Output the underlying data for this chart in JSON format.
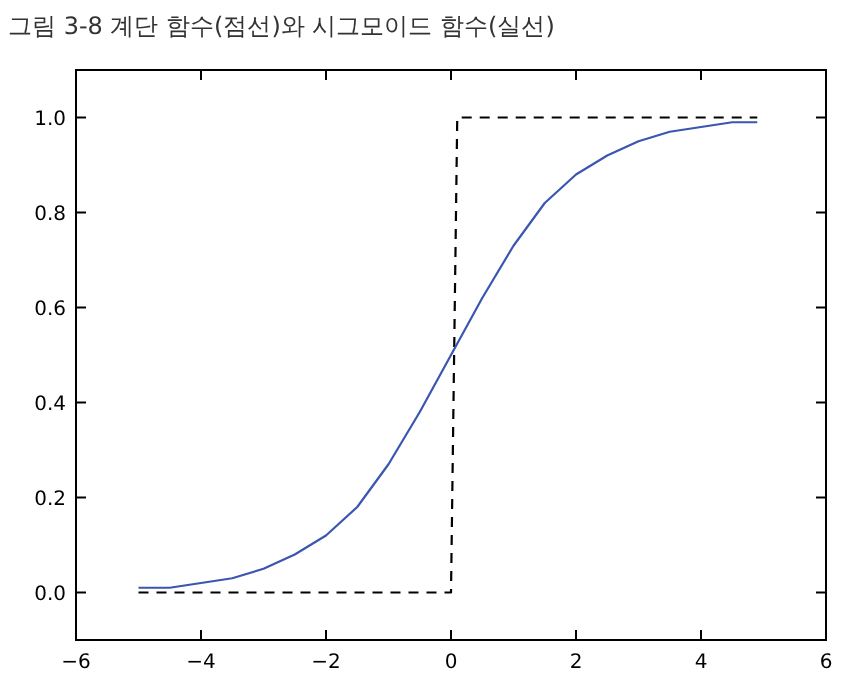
{
  "chart_data": {
    "type": "line",
    "title": "그림 3-8  계단 함수(점선)와 시그모이드 함수(실선)",
    "xlim": [
      -6,
      6
    ],
    "xticks": [
      {
        "value": -6,
        "label": "−6"
      },
      {
        "value": -4,
        "label": "−4"
      },
      {
        "value": -2,
        "label": "−2"
      },
      0,
      2,
      4,
      6
    ],
    "ylim": [
      -0.1,
      1.1
    ],
    "yticks": [
      {
        "value": 0,
        "label": "0.0"
      },
      0.2,
      0.4,
      0.6,
      0.8,
      {
        "value": 1,
        "label": "1.0"
      }
    ],
    "grid": false,
    "series": [
      {
        "color": "#000000",
        "line_style": "dashed",
        "x": [
          -5,
          0,
          0.1,
          4.9
        ],
        "values": [
          0,
          0,
          1,
          1
        ]
      },
      {
        "color": "#3a56b0",
        "line_style": "solid",
        "x": [
          -5,
          -4.5,
          -4,
          -3.5,
          -3,
          -2.5,
          -2,
          -1.5,
          -1,
          -0.5,
          0,
          0.5,
          1,
          1.5,
          2,
          2.5,
          3,
          3.5,
          4,
          4.5,
          4.9
        ],
        "values": [
          0.01,
          0.01,
          0.02,
          0.03,
          0.05,
          0.08,
          0.12,
          0.18,
          0.27,
          0.38,
          0.5,
          0.62,
          0.73,
          0.82,
          0.88,
          0.92,
          0.95,
          0.97,
          0.98,
          0.99,
          0.99
        ]
      }
    ]
  }
}
